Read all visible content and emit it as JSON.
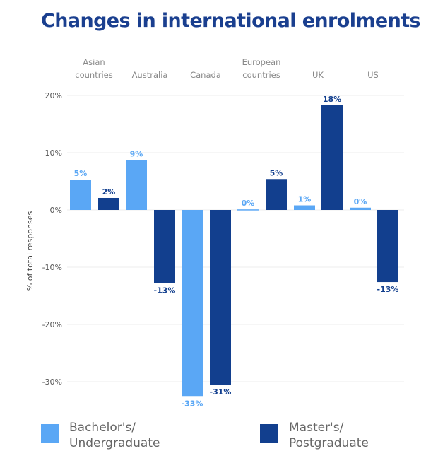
{
  "title": "Changes in international  enrolments",
  "colors": {
    "bachelor": "#5aa7f5",
    "master": "#123f8e",
    "axis_text": "#555555",
    "grid": "#eeeeee"
  },
  "chart_data": {
    "type": "bar",
    "ylabel": "% of total responses",
    "ylim": [
      -35,
      20
    ],
    "yticks": [
      20,
      10,
      0,
      -10,
      -20,
      -30
    ],
    "ytick_labels": [
      "20%",
      "10%",
      "0%",
      "-10%",
      "-20%",
      "-30%"
    ],
    "grid": true,
    "legend_position": "bottom",
    "category_position": "top",
    "categories": [
      [
        "Asian",
        "countries"
      ],
      [
        "Australia"
      ],
      [
        "Canada"
      ],
      [
        "European",
        "countries"
      ],
      [
        "UK"
      ],
      [
        "US"
      ]
    ],
    "series": [
      {
        "name": "Bachelor's/ Undergraduate",
        "legend_lines": [
          "Bachelor's/",
          "Undergraduate"
        ],
        "values": [
          5.3,
          8.7,
          -32.5,
          0.1,
          0.8,
          0.4
        ],
        "labels": [
          "5%",
          "9%",
          "-33%",
          "0%",
          "1%",
          "0%"
        ]
      },
      {
        "name": "Master's/ Postgraduate",
        "legend_lines": [
          "Master's/",
          "Postgraduate"
        ],
        "values": [
          2.1,
          -12.8,
          -30.5,
          5.4,
          18.3,
          -12.6
        ],
        "labels": [
          "2%",
          "-13%",
          "-31%",
          "5%",
          "18%",
          "-13%"
        ]
      }
    ]
  }
}
